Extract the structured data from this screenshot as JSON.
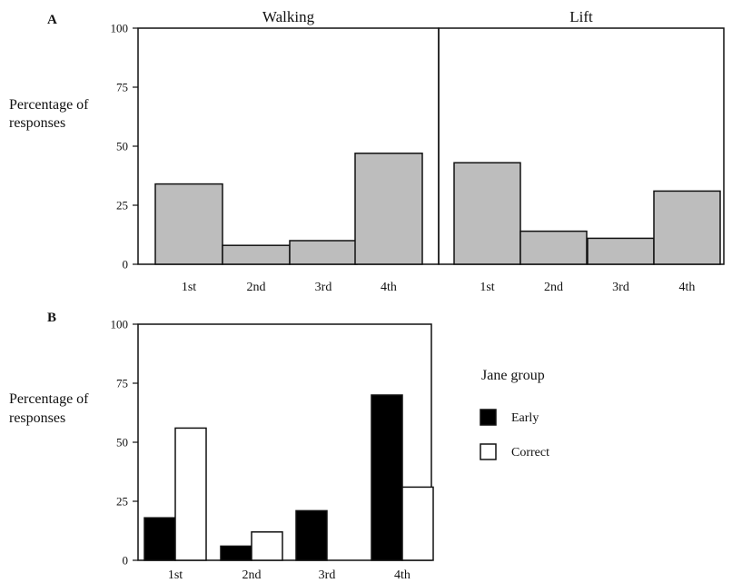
{
  "chart_data": [
    {
      "panel": "A",
      "type": "bar",
      "ylabel": "Percentage of responses",
      "ylim": [
        0,
        100
      ],
      "yticks": [
        0,
        25,
        50,
        75,
        100
      ],
      "bar_color": "#bdbdbd",
      "facets": [
        {
          "title": "Walking",
          "categories": [
            "1st",
            "2nd",
            "3rd",
            "4th"
          ],
          "values": [
            34,
            8,
            10,
            47
          ]
        },
        {
          "title": "Lift",
          "categories": [
            "1st",
            "2nd",
            "3rd",
            "4th"
          ],
          "values": [
            43,
            14,
            11,
            31
          ]
        }
      ]
    },
    {
      "panel": "B",
      "type": "bar",
      "ylabel": "Percentage of responses",
      "ylim": [
        0,
        100
      ],
      "yticks": [
        0,
        25,
        50,
        75,
        100
      ],
      "categories": [
        "1st",
        "2nd",
        "3rd",
        "4th"
      ],
      "legend": {
        "title": "Jane group",
        "placement": "right"
      },
      "series": [
        {
          "name": "Early",
          "color": "#000000",
          "values": [
            18,
            6,
            21,
            70
          ]
        },
        {
          "name": "Correct",
          "color": "#ffffff",
          "values": [
            56,
            12,
            0,
            31
          ]
        }
      ]
    }
  ]
}
